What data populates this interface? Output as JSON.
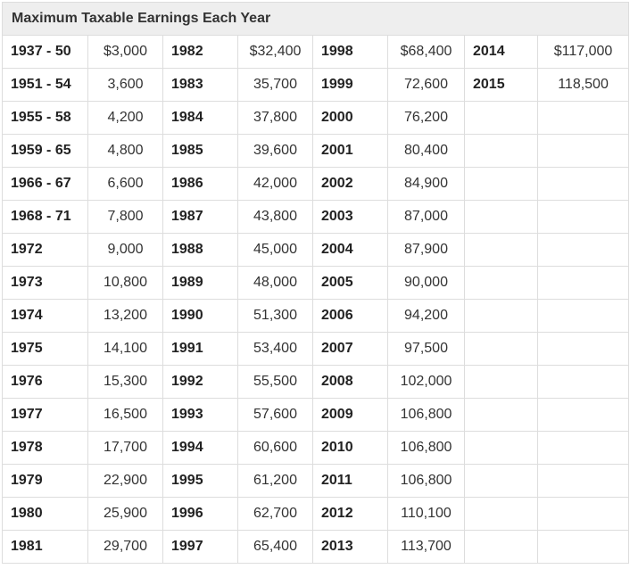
{
  "table": {
    "title": "Maximum Taxable Earnings Each Year",
    "rows": [
      [
        "1937 - 50",
        "$3,000",
        "1982",
        "$32,400",
        "1998",
        "$68,400",
        "2014",
        "$117,000"
      ],
      [
        "1951 - 54",
        "3,600",
        "1983",
        "35,700",
        "1999",
        "72,600",
        "2015",
        "118,500"
      ],
      [
        "1955 - 58",
        "4,200",
        "1984",
        "37,800",
        "2000",
        "76,200",
        "",
        ""
      ],
      [
        "1959 - 65",
        "4,800",
        "1985",
        "39,600",
        "2001",
        "80,400",
        "",
        ""
      ],
      [
        "1966 - 67",
        "6,600",
        "1986",
        "42,000",
        "2002",
        "84,900",
        "",
        ""
      ],
      [
        "1968 - 71",
        "7,800",
        "1987",
        "43,800",
        "2003",
        "87,000",
        "",
        ""
      ],
      [
        "1972",
        "9,000",
        "1988",
        "45,000",
        "2004",
        "87,900",
        "",
        ""
      ],
      [
        "1973",
        "10,800",
        "1989",
        "48,000",
        "2005",
        "90,000",
        "",
        ""
      ],
      [
        "1974",
        "13,200",
        "1990",
        "51,300",
        "2006",
        "94,200",
        "",
        ""
      ],
      [
        "1975",
        "14,100",
        "1991",
        "53,400",
        "2007",
        "97,500",
        "",
        ""
      ],
      [
        "1976",
        "15,300",
        "1992",
        "55,500",
        "2008",
        "102,000",
        "",
        ""
      ],
      [
        "1977",
        "16,500",
        "1993",
        "57,600",
        "2009",
        "106,800",
        "",
        ""
      ],
      [
        "1978",
        "17,700",
        "1994",
        "60,600",
        "2010",
        "106,800",
        "",
        ""
      ],
      [
        "1979",
        "22,900",
        "1995",
        "61,200",
        "2011",
        "106,800",
        "",
        ""
      ],
      [
        "1980",
        "25,900",
        "1996",
        "62,700",
        "2012",
        "110,100",
        "",
        ""
      ],
      [
        "1981",
        "29,700",
        "1997",
        "65,400",
        "2013",
        "113,700",
        "",
        ""
      ]
    ]
  }
}
